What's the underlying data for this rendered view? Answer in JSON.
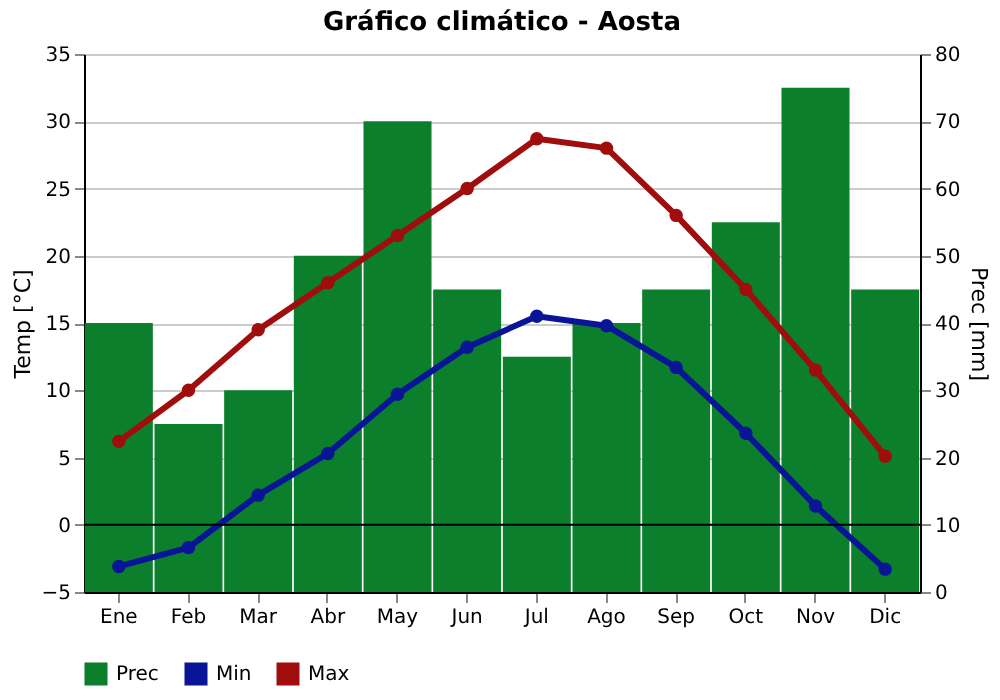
{
  "chart_data": {
    "type": "bar",
    "title": "Gráfico climático - Aosta",
    "ylabel": "Temp [°C]",
    "y2label": "Prec [mm]",
    "categories": [
      "Ene",
      "Feb",
      "Mar",
      "Abr",
      "May",
      "Jun",
      "Jul",
      "Ago",
      "Sep",
      "Oct",
      "Nov",
      "Dic"
    ],
    "series": [
      {
        "name": "Prec",
        "axis": "y2",
        "color": "#0b7f2b",
        "values": [
          40,
          25,
          30,
          50,
          70,
          45,
          35,
          40,
          45,
          55,
          75,
          45
        ]
      },
      {
        "name": "Min",
        "type": "line",
        "color": "#0a1496",
        "values": [
          -3.1,
          -1.7,
          2.2,
          5.3,
          9.7,
          13.2,
          15.5,
          14.8,
          11.7,
          6.8,
          1.4,
          -3.3
        ]
      },
      {
        "name": "Max",
        "type": "line",
        "color": "#a00d0d",
        "values": [
          6.2,
          10,
          14.5,
          18,
          21.5,
          25,
          28.7,
          28,
          23,
          17.5,
          11.5,
          5.1
        ]
      }
    ],
    "ylim": [
      -5,
      35
    ],
    "yticks": [
      -5,
      0,
      5,
      10,
      15,
      20,
      25,
      30,
      35
    ],
    "y2lim": [
      0,
      80
    ],
    "y2ticks": [
      0,
      10,
      20,
      30,
      40,
      50,
      60,
      70,
      80
    ],
    "grid": "y",
    "legend": "bottom",
    "marker": "circle",
    "line_style": "solid",
    "ref_lines": [
      {
        "axis": "y",
        "value": 0,
        "color": "#000000"
      }
    ]
  }
}
